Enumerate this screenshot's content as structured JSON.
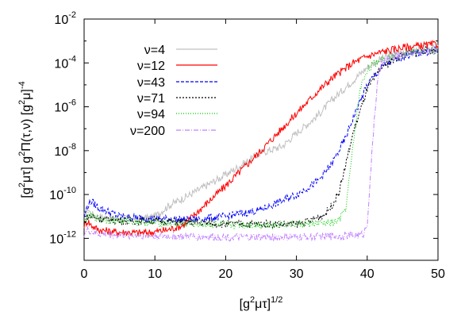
{
  "chart_data": {
    "type": "line",
    "title": "",
    "xlabel": "[g²μτ]¹⁄²",
    "ylabel": "[g²μτ]  g²Π(τ,ν)  [g²μ]⁻⁴",
    "xlim": [
      0,
      50
    ],
    "ylim_log10": [
      -13,
      -2
    ],
    "y_scale": "log",
    "x_ticks": [
      0,
      10,
      20,
      30,
      40,
      50
    ],
    "x_tick_labels": [
      "0",
      "10",
      "20",
      "30",
      "40",
      "50"
    ],
    "y_ticks_log10": [
      -12,
      -10,
      -8,
      -6,
      -4,
      -2
    ],
    "y_tick_labels": [
      {
        "base": "10",
        "exp": "-12"
      },
      {
        "base": "10",
        "exp": "-10"
      },
      {
        "base": "10",
        "exp": "-8"
      },
      {
        "base": "10",
        "exp": "-6"
      },
      {
        "base": "10",
        "exp": "-4"
      },
      {
        "base": "10",
        "exp": "-2"
      }
    ],
    "grid": false,
    "legend_position": "top-left",
    "series": [
      {
        "name": "ν=4",
        "color": "#c0c0c0",
        "dash": "",
        "x": [
          0,
          0.5,
          1,
          2,
          4,
          8,
          10,
          12,
          15,
          20,
          25,
          28,
          30,
          33,
          35,
          38,
          40,
          42,
          45,
          48,
          50
        ],
        "y_log10": [
          -11.0,
          -10.6,
          -10.9,
          -11.0,
          -11.1,
          -11.1,
          -11.0,
          -10.5,
          -10.0,
          -9.1,
          -8.1,
          -7.8,
          -7.2,
          -6.4,
          -5.7,
          -4.8,
          -4.2,
          -3.8,
          -3.5,
          -3.35,
          -3.3
        ]
      },
      {
        "name": "ν=12",
        "color": "#ff0000",
        "dash": "",
        "x": [
          0,
          0.5,
          1,
          2,
          4,
          8,
          10,
          12,
          14,
          16,
          20,
          25,
          30,
          33,
          35,
          38,
          40,
          42,
          45,
          48,
          50
        ],
        "y_log10": [
          -11.4,
          -11.2,
          -11.4,
          -11.6,
          -11.7,
          -11.75,
          -11.7,
          -11.6,
          -11.4,
          -10.8,
          -9.6,
          -8.0,
          -6.3,
          -5.3,
          -4.7,
          -4.0,
          -3.7,
          -3.5,
          -3.3,
          -3.2,
          -3.15
        ]
      },
      {
        "name": "ν=43",
        "color": "#0000ff",
        "dash": "4,2",
        "x": [
          0,
          0.5,
          1,
          2,
          5,
          10,
          15,
          17,
          20,
          25,
          30,
          33,
          35,
          37,
          38,
          40,
          42,
          45,
          48,
          50
        ],
        "y_log10": [
          -11.0,
          -10.5,
          -10.3,
          -10.6,
          -11.0,
          -11.1,
          -11.15,
          -11.1,
          -11.0,
          -10.7,
          -10.0,
          -9.4,
          -8.6,
          -7.4,
          -6.5,
          -5.0,
          -4.2,
          -3.7,
          -3.5,
          -3.4
        ]
      },
      {
        "name": "ν=71",
        "color": "#000000",
        "dash": "2,2",
        "x": [
          0,
          0.5,
          1,
          2,
          5,
          10,
          20,
          30,
          32,
          34,
          35,
          36,
          37,
          38,
          40,
          42,
          45,
          48,
          50
        ],
        "y_log10": [
          -11.3,
          -11.0,
          -11.0,
          -11.1,
          -11.2,
          -11.2,
          -11.35,
          -11.35,
          -11.2,
          -10.9,
          -10.5,
          -9.9,
          -8.6,
          -7.2,
          -5.2,
          -4.2,
          -3.6,
          -3.45,
          -3.4
        ]
      },
      {
        "name": "ν=94",
        "color": "#00cc00",
        "dash": "1,2",
        "x": [
          0,
          0.5,
          1,
          2,
          5,
          10,
          20,
          30,
          35,
          36,
          37,
          37.5,
          38,
          38.5,
          39,
          40,
          42,
          45,
          48,
          50
        ],
        "y_log10": [
          -11.3,
          -11.0,
          -11.0,
          -11.1,
          -11.2,
          -11.3,
          -11.4,
          -11.35,
          -11.3,
          -11.2,
          -10.6,
          -9.2,
          -7.8,
          -6.4,
          -5.2,
          -4.3,
          -3.8,
          -3.6,
          -3.5,
          -3.45
        ]
      },
      {
        "name": "ν=200",
        "color": "#c080ff",
        "dash": "6,2,1,2",
        "x": [
          0,
          0.5,
          1,
          2,
          5,
          10,
          20,
          30,
          35,
          39,
          39.5,
          40,
          40.5,
          41,
          41.5,
          42,
          43,
          45,
          48,
          50
        ],
        "y_log10": [
          -11.8,
          -11.6,
          -11.7,
          -11.8,
          -11.85,
          -11.9,
          -11.95,
          -11.95,
          -11.9,
          -11.85,
          -11.8,
          -11.3,
          -9.0,
          -6.5,
          -4.8,
          -4.0,
          -3.8,
          -3.6,
          -3.5,
          -3.45
        ]
      }
    ]
  }
}
